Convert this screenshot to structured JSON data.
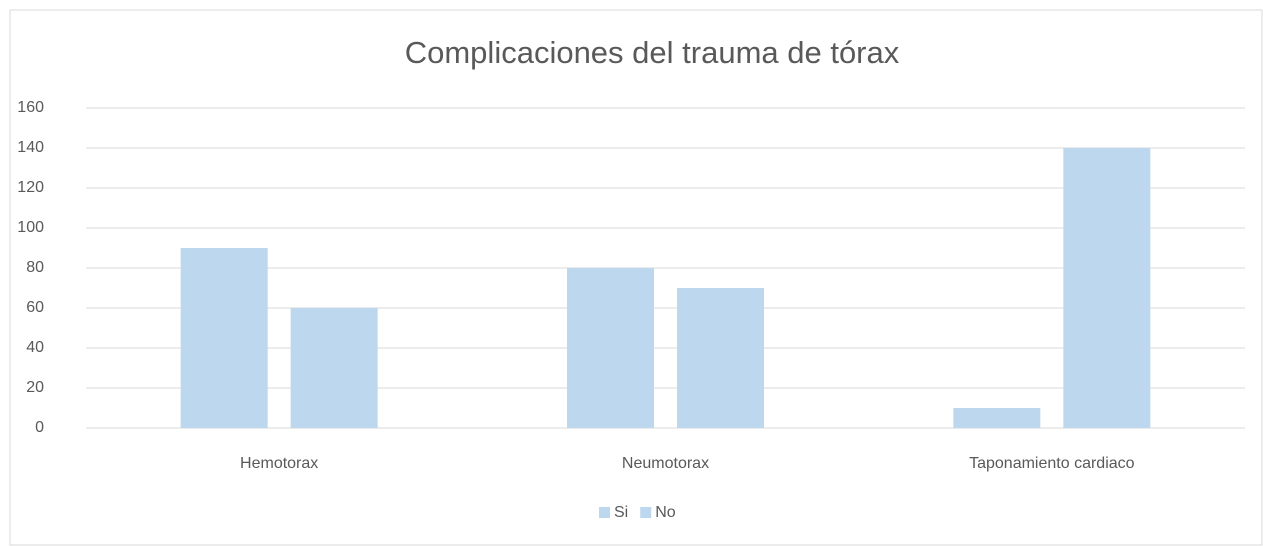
{
  "chart_data": {
    "type": "bar",
    "title": "Complicaciones del trauma de tórax",
    "categories": [
      "Hemotorax",
      "Neumotorax",
      "Taponamiento cardiaco"
    ],
    "series": [
      {
        "name": "Si",
        "color": "#bdd7ee",
        "values": [
          90,
          80,
          10
        ]
      },
      {
        "name": "No",
        "color": "#bdd7ee",
        "values": [
          60,
          70,
          140
        ]
      }
    ],
    "ylim": [
      0,
      160
    ],
    "yticks": [
      0,
      20,
      40,
      60,
      80,
      100,
      120,
      140,
      160
    ],
    "grid": true,
    "legend": "bottom"
  }
}
